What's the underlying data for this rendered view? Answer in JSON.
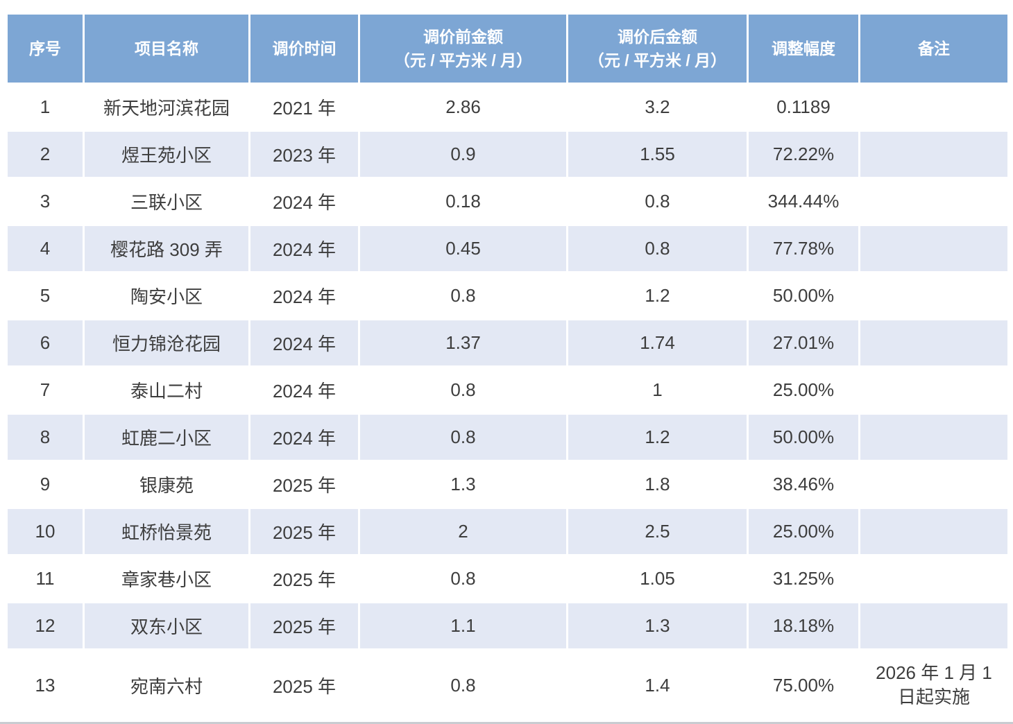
{
  "table": {
    "columns": [
      {
        "label": "序号"
      },
      {
        "label": "项目名称"
      },
      {
        "label": "调价时间"
      },
      {
        "label": "调价前金额",
        "sublabel": "（元 / 平方米 / 月）"
      },
      {
        "label": "调价后金额",
        "sublabel": "（元 / 平方米 / 月）"
      },
      {
        "label": "调整幅度"
      },
      {
        "label": "备注"
      }
    ],
    "rows": [
      {
        "no": "1",
        "name": "新天地河滨花园",
        "time": "2021 年",
        "before": "2.86",
        "after": "3.2",
        "range": "0.1189",
        "remark": ""
      },
      {
        "no": "2",
        "name": "煜王苑小区",
        "time": "2023 年",
        "before": "0.9",
        "after": "1.55",
        "range": "72.22%",
        "remark": ""
      },
      {
        "no": "3",
        "name": "三联小区",
        "time": "2024 年",
        "before": "0.18",
        "after": "0.8",
        "range": "344.44%",
        "remark": ""
      },
      {
        "no": "4",
        "name": "樱花路 309 弄",
        "time": "2024 年",
        "before": "0.45",
        "after": "0.8",
        "range": "77.78%",
        "remark": ""
      },
      {
        "no": "5",
        "name": "陶安小区",
        "time": "2024 年",
        "before": "0.8",
        "after": "1.2",
        "range": "50.00%",
        "remark": ""
      },
      {
        "no": "6",
        "name": "恒力锦沧花园",
        "time": "2024 年",
        "before": "1.37",
        "after": "1.74",
        "range": "27.01%",
        "remark": ""
      },
      {
        "no": "7",
        "name": "泰山二村",
        "time": "2024 年",
        "before": "0.8",
        "after": "1",
        "range": "25.00%",
        "remark": ""
      },
      {
        "no": "8",
        "name": "虹鹿二小区",
        "time": "2024 年",
        "before": "0.8",
        "after": "1.2",
        "range": "50.00%",
        "remark": ""
      },
      {
        "no": "9",
        "name": "银康苑",
        "time": "2025 年",
        "before": "1.3",
        "after": "1.8",
        "range": "38.46%",
        "remark": ""
      },
      {
        "no": "10",
        "name": "虹桥怡景苑",
        "time": "2025 年",
        "before": "2",
        "after": "2.5",
        "range": "25.00%",
        "remark": ""
      },
      {
        "no": "11",
        "name": "章家巷小区",
        "time": "2025 年",
        "before": "0.8",
        "after": "1.05",
        "range": "31.25%",
        "remark": ""
      },
      {
        "no": "12",
        "name": "双东小区",
        "time": "2025 年",
        "before": "1.1",
        "after": "1.3",
        "range": "18.18%",
        "remark": ""
      },
      {
        "no": "13",
        "name": "宛南六村",
        "time": "2025 年",
        "before": "0.8",
        "after": "1.4",
        "range": "75.00%",
        "remark": "2026 年 1 月 1\n日起实施"
      }
    ]
  },
  "colors": {
    "header_bg": "#7DA6D4",
    "stripe_bg": "#E3E8F4",
    "row_bg": "#FFFFFF",
    "header_text": "#FFFFFF",
    "body_text": "#3D3D3D"
  }
}
